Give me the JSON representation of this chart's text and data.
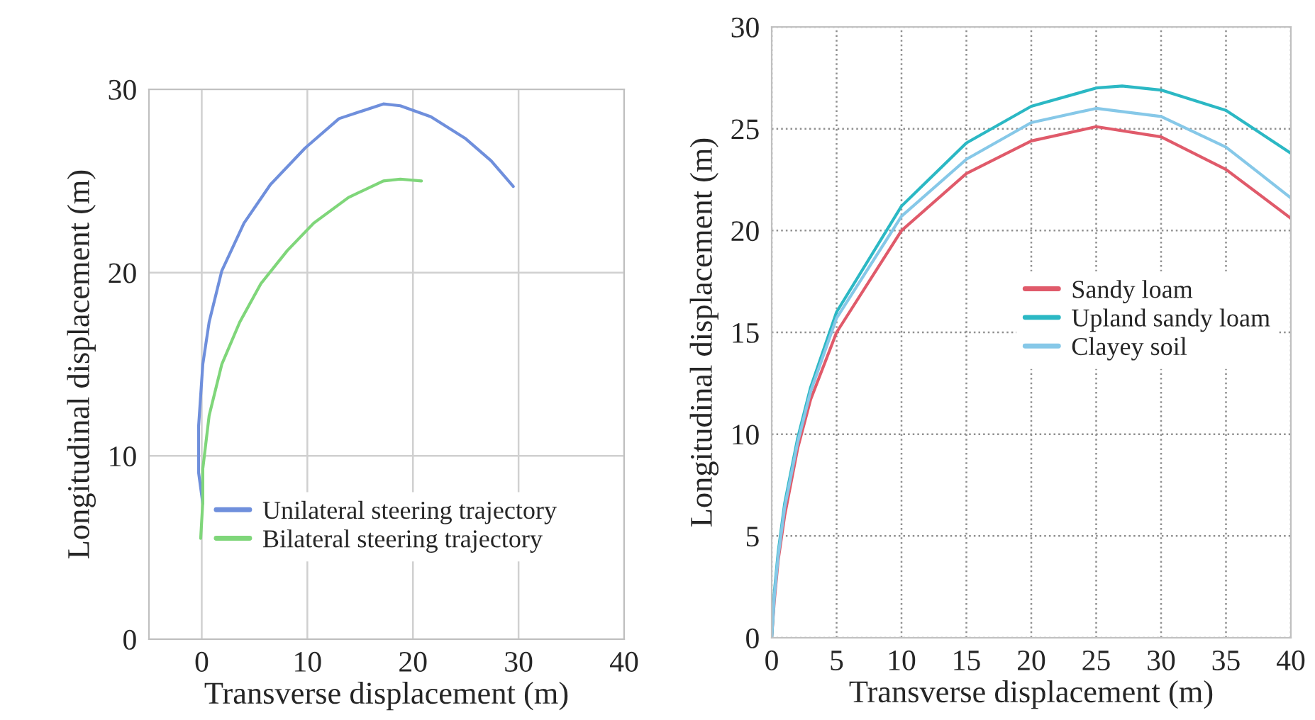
{
  "chart_data": [
    {
      "type": "line",
      "xlabel": "Transverse displacement (m)",
      "ylabel": "Longitudinal displacement (m)",
      "xlim": [
        -5,
        40
      ],
      "ylim": [
        0,
        30
      ],
      "xticks": [
        0,
        10,
        20,
        30,
        40
      ],
      "yticks": [
        0,
        10,
        20,
        30
      ],
      "grid": true,
      "line_style": "solid",
      "legend": "lower center",
      "series": [
        {
          "name": "Unilateral steering trajectory",
          "color": "#6f8fdc",
          "x": [
            0.1,
            -0.3,
            -0.3,
            0.1,
            0.7,
            1.9,
            4.0,
            6.5,
            9.8,
            13.0,
            17.2,
            18.8,
            21.7,
            25.0,
            27.4,
            29.5
          ],
          "values": [
            7.4,
            9.1,
            11.6,
            15.0,
            17.3,
            20.1,
            22.7,
            24.8,
            26.8,
            28.4,
            29.2,
            29.1,
            28.5,
            27.3,
            26.1,
            24.7
          ]
        },
        {
          "name": "Bilateral steering trajectory",
          "color": "#7fd67a",
          "x": [
            -0.1,
            0.1,
            0.1,
            0.7,
            1.9,
            3.6,
            5.6,
            8.1,
            10.6,
            13.9,
            17.2,
            18.8,
            20.8
          ],
          "values": [
            5.5,
            7.5,
            9.3,
            12.2,
            15.0,
            17.3,
            19.4,
            21.2,
            22.7,
            24.1,
            25.0,
            25.1,
            25.0
          ]
        }
      ]
    },
    {
      "type": "line",
      "xlabel": "Transverse displacement (m)",
      "ylabel": "Longitudinal displacement (m)",
      "xlim": [
        0,
        40
      ],
      "ylim": [
        0,
        30
      ],
      "xticks": [
        0,
        5,
        10,
        15,
        20,
        25,
        30,
        35,
        40
      ],
      "yticks": [
        0,
        5,
        10,
        15,
        20,
        25,
        30
      ],
      "grid": true,
      "line_style": "solid",
      "legend": "center right",
      "series": [
        {
          "name": "Sandy loam",
          "color": "#e05a6a",
          "x": [
            0,
            0.2,
            0.5,
            1,
            2,
            3,
            5,
            10,
            15,
            20,
            25,
            30,
            35,
            40
          ],
          "values": [
            0,
            1.8,
            3.8,
            6.0,
            9.3,
            11.7,
            15.0,
            20.0,
            22.8,
            24.4,
            25.1,
            24.6,
            23.0,
            20.6
          ]
        },
        {
          "name": "Upland sandy loam",
          "color": "#2bb8c4",
          "x": [
            0,
            0.2,
            0.5,
            1,
            2,
            3,
            5,
            10,
            15,
            20,
            25,
            27,
            30,
            35,
            40
          ],
          "values": [
            0,
            2.2,
            4.2,
            6.6,
            9.8,
            12.3,
            16.0,
            21.2,
            24.3,
            26.1,
            27.0,
            27.1,
            26.9,
            25.9,
            23.8
          ]
        },
        {
          "name": "Clayey soil",
          "color": "#86c8e8",
          "x": [
            0,
            0.2,
            0.5,
            1,
            2,
            3,
            5,
            10,
            15,
            20,
            25,
            30,
            35,
            40
          ],
          "values": [
            0,
            2.0,
            4.0,
            6.4,
            9.6,
            12.1,
            15.7,
            20.7,
            23.5,
            25.3,
            26.0,
            25.6,
            24.1,
            21.6
          ]
        }
      ]
    }
  ]
}
